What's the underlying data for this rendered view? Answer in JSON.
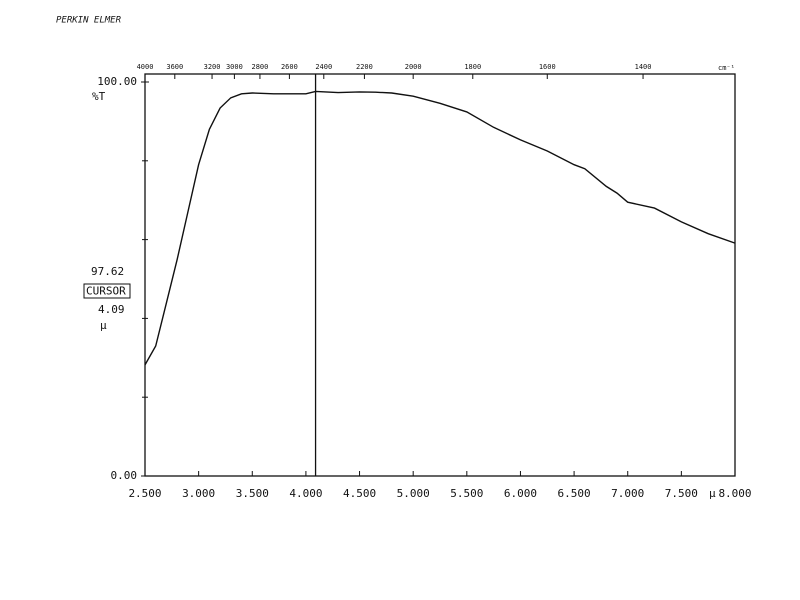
{
  "chart_data": {
    "type": "line",
    "title": "PERKIN ELMER",
    "y_label": "%T",
    "x_unit": "µ",
    "x2_label": "cm⁻¹",
    "x": [
      2.5,
      2.6,
      2.7,
      2.8,
      2.9,
      3.0,
      3.1,
      3.2,
      3.3,
      3.4,
      3.5,
      3.7,
      4.0,
      4.09,
      4.3,
      4.5,
      4.65,
      4.8,
      5.0,
      5.25,
      5.5,
      5.75,
      6.0,
      6.25,
      6.5,
      6.6,
      6.8,
      6.9,
      7.0,
      7.25,
      7.5,
      7.75,
      8.0
    ],
    "series": [
      {
        "name": "%T",
        "color": "#111111",
        "values": [
          28.2,
          33,
          44,
          55,
          67,
          79,
          88,
          93.4,
          96,
          97,
          97.2,
          97,
          97,
          97.62,
          97.3,
          97.5,
          97.4,
          97.2,
          96.4,
          94.6,
          92.4,
          88.5,
          85.3,
          82.5,
          79,
          78,
          73.5,
          71.8,
          69.5,
          68,
          64.5,
          61.5,
          59.1
        ]
      }
    ],
    "xlim": [
      2.5,
      8.0
    ],
    "ylim": [
      0,
      100
    ],
    "xticks": [
      {
        "value": 2.5,
        "label": "2.500"
      },
      {
        "value": 3.0,
        "label": "3.000"
      },
      {
        "value": 3.5,
        "label": "3.500"
      },
      {
        "value": 4.0,
        "label": "4.000"
      },
      {
        "value": 4.5,
        "label": "4.500"
      },
      {
        "value": 5.0,
        "label": "5.000"
      },
      {
        "value": 5.5,
        "label": "5.500"
      },
      {
        "value": 6.0,
        "label": "6.000"
      },
      {
        "value": 6.5,
        "label": "6.500"
      },
      {
        "value": 7.0,
        "label": "7.000"
      },
      {
        "value": 7.5,
        "label": "7.500"
      },
      {
        "value": 8.0,
        "label": "8.000"
      }
    ],
    "yticks": [
      {
        "value": 0,
        "label": "0.00"
      },
      {
        "value": 100,
        "label": "100.00"
      }
    ],
    "yminor_ticks": [
      20,
      40,
      60,
      80
    ],
    "x2ticks": [
      4000,
      3600,
      3200,
      3000,
      2800,
      2600,
      2400,
      2200,
      2000,
      1800,
      1600,
      1400
    ],
    "cursor": {
      "x": 4.09,
      "y": 97.62,
      "label": "CURSOR",
      "x_unit": "µ"
    },
    "grid": false
  }
}
